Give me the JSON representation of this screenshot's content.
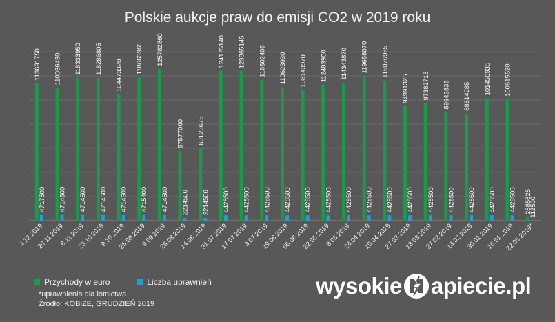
{
  "title": "Polskie aukcje praw do emisji CO2 w 2019 roku",
  "legend": {
    "series1": "Przychody w euro",
    "series2": "Liczba uprawnień"
  },
  "footnote": "*uprawnienia dla lotnictwa",
  "source": "Źródło: KOBiZE, GRUDZIEŃ 2019",
  "logo": {
    "left": "wysokie",
    "right": "apiecie.pl",
    "icon": "lightning-n-icon"
  },
  "colors": {
    "background": "#585858",
    "series1": "#1a9a4a",
    "series2": "#1f9fd8"
  },
  "chart_data": {
    "type": "bar",
    "ylim": [
      0,
      140000000
    ],
    "grid": true,
    "legend_position": "bottom-left",
    "categories": [
      "4.12.2019",
      "20.11.2019",
      "6.11.2019",
      "23.10.2019",
      "9.10.2019",
      "25.09.2019",
      "9.09.2019",
      "28.08.2019",
      "14.08.2019",
      "31.07.2019",
      "17.07.2019",
      "3.07.2019",
      "19.06.2019",
      "05.06.2019",
      "22.05.2019",
      "8.05.2019",
      "24.04.2019",
      "10.04.2019",
      "27.03.2019",
      "13.03.2019",
      "27.02.2019",
      "13.02.2019",
      "30.01.2019",
      "16.01.2019",
      "22.05.2019*"
    ],
    "series": [
      {
        "name": "Przychody w euro",
        "values": [
          113691750,
          110036430,
          118333950,
          118286805,
          104473320,
          118663965,
          125782860,
          57577000,
          60123675,
          124175140,
          123865145,
          116602405,
          110623930,
          108143970,
          112483900,
          114343870,
          119658070,
          116070985,
          94991325,
          97382715,
          89942835,
          88614285,
          101456935,
          100615520,
          2885625
        ],
        "labels": [
          "113691750",
          "110036430",
          "118333950",
          "118286805",
          "104473320",
          "118663965",
          "125782860",
          "57577000",
          "60123675",
          "124175140",
          "123865145",
          "116602405",
          "110623930",
          "108143970",
          "112483900",
          "114343870",
          "119658070",
          "116070985",
          "94991325",
          "97382715",
          "89942835",
          "88614285",
          "101456935",
          "100615520",
          "2885625"
        ]
      },
      {
        "name": "Liczba uprawnień",
        "values": [
          4717500,
          4714500,
          4714500,
          4714500,
          4714500,
          4715400,
          4714500,
          2214500,
          2214500,
          4428500,
          4428500,
          4428500,
          4428500,
          4428500,
          4428500,
          4428500,
          4428500,
          4428500,
          4428500,
          4428500,
          4428500,
          4428500,
          4428500,
          4428500,
          112500
        ],
        "labels": [
          "4717500",
          "4714500",
          "4714500",
          "4714500",
          "4714500",
          "4715400",
          "4714500",
          "2214500",
          "2214500",
          "4428500",
          "4428500",
          "4428500",
          "4428500",
          "4428500",
          "4428500",
          "4428500",
          "4428500",
          "4428500",
          "4428500",
          "4428500",
          "4428500",
          "4428500",
          "4428500",
          "4428500",
          "112500"
        ]
      }
    ]
  }
}
